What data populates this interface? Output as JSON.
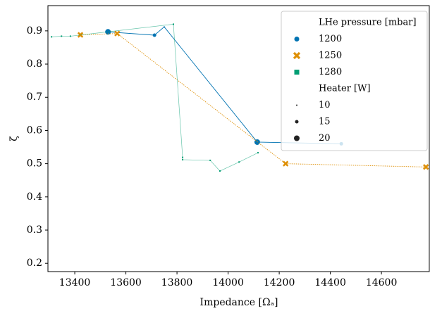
{
  "chart_data": {
    "type": "scatter",
    "xlabel": "Impedance [Ωₐ]",
    "ylabel": "ζ",
    "xlim": [
      13295,
      14790
    ],
    "ylim": [
      0.175,
      0.976
    ],
    "xticks": [
      13400,
      13600,
      13800,
      14000,
      14200,
      14400,
      14600
    ],
    "yticks": [
      0.2,
      0.3,
      0.4,
      0.5,
      0.6,
      0.7,
      0.8,
      0.9
    ],
    "hue_title": "LHe pressure [mbar]",
    "size_title": "Heater [W]",
    "size_levels": [
      10,
      15,
      20
    ],
    "series": [
      {
        "name": "1200",
        "color": "#0173b2",
        "marker": "circle",
        "line": "solid",
        "x": [
          13530,
          13712,
          13750,
          14114,
          14443
        ],
        "values": [
          0.897,
          0.887,
          0.912,
          0.565,
          0.56
        ],
        "sizes": [
          20,
          15,
          10,
          20,
          15
        ]
      },
      {
        "name": "1250",
        "color": "#de8f05",
        "marker": "x",
        "line": "dotted",
        "x": [
          13422,
          13566,
          14225,
          14774
        ],
        "values": [
          0.888,
          0.892,
          0.5,
          0.49
        ],
        "sizes": [
          15,
          15,
          15,
          15
        ]
      },
      {
        "name": "1280",
        "color": "#029e73",
        "marker": "square",
        "line": "thin",
        "x": [
          13309,
          13348,
          13383,
          13786,
          13822,
          13822,
          13930,
          13968,
          14043,
          14117
        ],
        "values": [
          0.882,
          0.884,
          0.884,
          0.92,
          0.519,
          0.512,
          0.51,
          0.478,
          0.505,
          0.533
        ],
        "sizes": [
          10,
          10,
          10,
          10,
          10,
          10,
          10,
          10,
          10,
          10
        ]
      }
    ]
  }
}
